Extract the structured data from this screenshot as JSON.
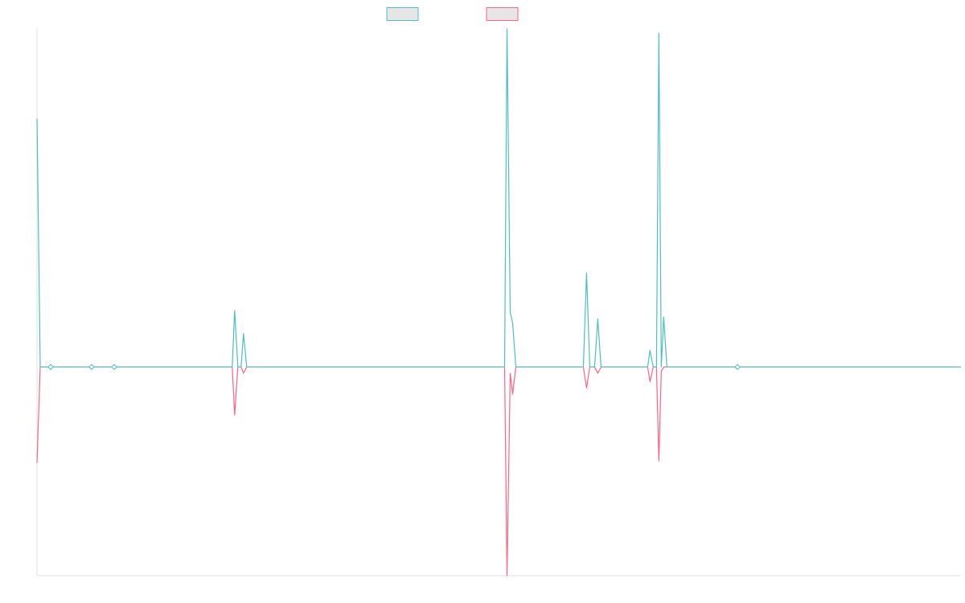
{
  "colors": {
    "series_1": "#4bc0c0",
    "series_2": "#ff6384",
    "legend_fill": "#e6e6e6",
    "axis": "#e0e0e0",
    "background": "#ffffff"
  },
  "chart_data": {
    "type": "line",
    "title": "",
    "xlabel": "",
    "ylabel": "",
    "grid": false,
    "legend": "top-center",
    "x_range": [
      0,
      1150
    ],
    "ylim": [
      -1.0,
      1.62
    ],
    "series": [
      {
        "color": "#4bc0c0",
        "points": [
          [
            0,
            1.19
          ],
          [
            4,
            0
          ],
          [
            17,
            0
          ],
          [
            68,
            0
          ],
          [
            96,
            0
          ],
          [
            243,
            0
          ],
          [
            246,
            0.27
          ],
          [
            250,
            0
          ],
          [
            254,
            0
          ],
          [
            257,
            0.16
          ],
          [
            261,
            0
          ],
          [
            582,
            0
          ],
          [
            585,
            1.62
          ],
          [
            589,
            0.26
          ],
          [
            592,
            0.21
          ],
          [
            596,
            0
          ],
          [
            680,
            0
          ],
          [
            684,
            0.45
          ],
          [
            688,
            0
          ],
          [
            694,
            0
          ],
          [
            698,
            0.23
          ],
          [
            702,
            0
          ],
          [
            760,
            0
          ],
          [
            763,
            0.08
          ],
          [
            767,
            0
          ],
          [
            771,
            0
          ],
          [
            774,
            1.6
          ],
          [
            777,
            0
          ],
          [
            780,
            0.24
          ],
          [
            784,
            0
          ],
          [
            872,
            0
          ],
          [
            1150,
            0
          ]
        ]
      },
      {
        "color": "#ff6384",
        "points": [
          [
            0,
            -0.46
          ],
          [
            4,
            0
          ],
          [
            17,
            0
          ],
          [
            68,
            0
          ],
          [
            96,
            0
          ],
          [
            243,
            0
          ],
          [
            246,
            -0.23
          ],
          [
            250,
            0
          ],
          [
            254,
            0
          ],
          [
            257,
            -0.03
          ],
          [
            261,
            0
          ],
          [
            582,
            0
          ],
          [
            585,
            -1.0
          ],
          [
            589,
            -0.03
          ],
          [
            592,
            -0.13
          ],
          [
            596,
            0
          ],
          [
            680,
            0
          ],
          [
            684,
            -0.1
          ],
          [
            688,
            0
          ],
          [
            694,
            0
          ],
          [
            698,
            -0.03
          ],
          [
            702,
            0
          ],
          [
            760,
            0
          ],
          [
            763,
            -0.07
          ],
          [
            767,
            0
          ],
          [
            771,
            0
          ],
          [
            774,
            -0.45
          ],
          [
            777,
            -0.02
          ],
          [
            780,
            0
          ],
          [
            784,
            0
          ],
          [
            872,
            0
          ],
          [
            1150,
            0
          ]
        ]
      }
    ],
    "markers": [
      {
        "x": 17,
        "y": 0
      },
      {
        "x": 68,
        "y": 0
      },
      {
        "x": 96,
        "y": 0
      },
      {
        "x": 872,
        "y": 0
      }
    ]
  }
}
